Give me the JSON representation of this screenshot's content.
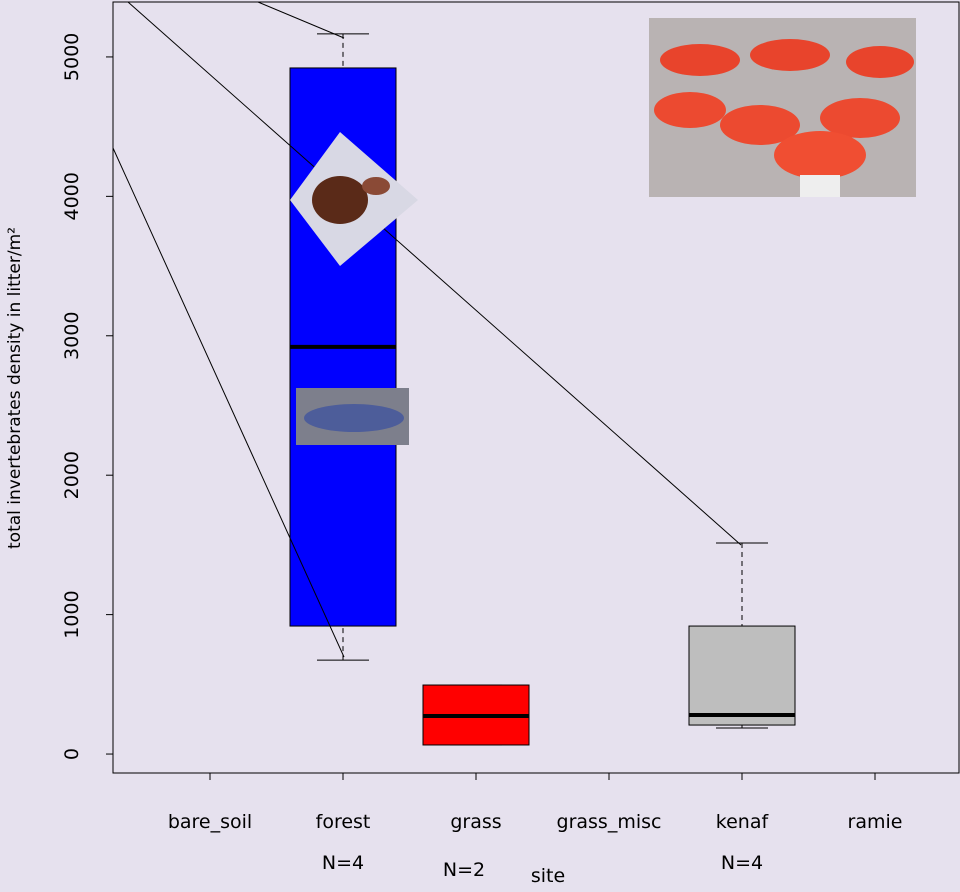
{
  "chart_data": {
    "type": "boxplot",
    "x_label": "site",
    "y_label": "total invertebrates density in litter/m²",
    "categories": [
      "bare_soil",
      "forest",
      "grass",
      "grass_misc",
      "kenaf",
      "ramie"
    ],
    "min": [
      null,
      674,
      65,
      null,
      187,
      null
    ],
    "q1": [
      null,
      918,
      65,
      null,
      208,
      null
    ],
    "median": [
      null,
      2920,
      273,
      null,
      280,
      null
    ],
    "q3": [
      null,
      4921,
      495,
      null,
      918,
      null
    ],
    "max": [
      null,
      5165,
      495,
      null,
      1514,
      null
    ],
    "colors": [
      null,
      "#0000ff",
      "#ff0000",
      null,
      "#bebebe",
      null
    ],
    "n_labels": [
      null,
      "N=4",
      "N=2",
      null,
      "N=4",
      null
    ],
    "ylim": [
      -136,
      5394
    ],
    "yticks": [
      0,
      1000,
      2000,
      3000,
      4000,
      5000
    ]
  }
}
